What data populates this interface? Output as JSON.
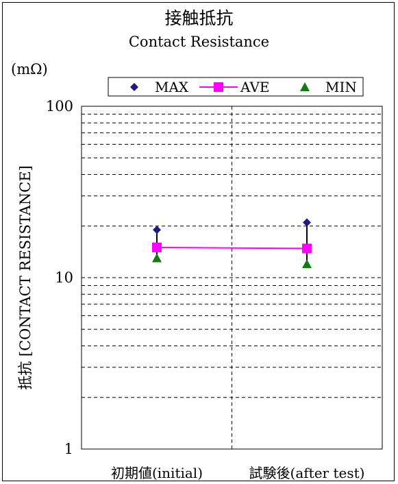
{
  "chart_data": {
    "type": "line",
    "title": "接触抵抗",
    "subtitle": "Contact Resistance",
    "unit_label": "(mΩ)",
    "ylabel": "抵抗 [CONTACT RESISTANCE]",
    "y_scale": "log",
    "ylim": [
      1,
      100
    ],
    "y_ticks": [
      {
        "value": 1,
        "label": "1"
      },
      {
        "value": 10,
        "label": "10"
      },
      {
        "value": 100,
        "label": "100"
      }
    ],
    "grid": "dashed, major and minor",
    "legend_position": "top",
    "categories": [
      "初期値(initial)",
      "試験後(after test)"
    ],
    "series": [
      {
        "name": "MAX",
        "marker": "diamond",
        "color": "#1b1b80",
        "values": [
          19,
          21
        ]
      },
      {
        "name": "AVE",
        "marker": "square",
        "color": "#ff00ff",
        "line": true,
        "values": [
          15,
          14.8
        ]
      },
      {
        "name": "MIN",
        "marker": "triangle",
        "color": "#117a11",
        "values": [
          13,
          12
        ]
      }
    ]
  }
}
